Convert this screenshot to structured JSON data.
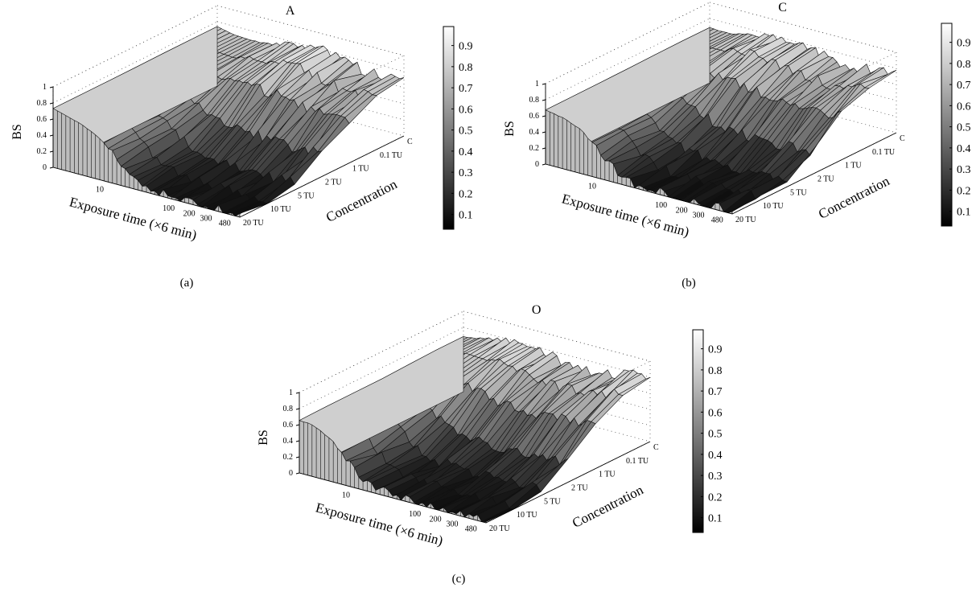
{
  "chart_data": [
    {
      "type": "surface",
      "panel_label": "(a)",
      "title": "A",
      "xlabel": "Exposure time (×6 min)",
      "ylabel": "Concentration",
      "zlabel": "BS",
      "x_ticks": [
        "10",
        "100",
        "200",
        "300",
        "480"
      ],
      "y_ticks": [
        "20 TU",
        "10 TU",
        "5 TU",
        "2 TU",
        "1 TU",
        "0.1 TU",
        "C"
      ],
      "z_ticks": [
        "0",
        "0.2",
        "0.4",
        "0.6",
        "0.8",
        "1"
      ],
      "zlim": [
        0,
        1
      ],
      "colorbar": {
        "ticks": [
          "0.1",
          "0.2",
          "0.3",
          "0.4",
          "0.5",
          "0.6",
          "0.7",
          "0.8",
          "0.9"
        ],
        "colormap": "gray"
      },
      "grid": "dotted"
    },
    {
      "type": "surface",
      "panel_label": "(b)",
      "title": "C",
      "xlabel": "Exposure time (×6 min)",
      "ylabel": "Concentration",
      "zlabel": "BS",
      "x_ticks": [
        "10",
        "100",
        "200",
        "300",
        "480"
      ],
      "y_ticks": [
        "20 TU",
        "10 TU",
        "5 TU",
        "2 TU",
        "1 TU",
        "0.1 TU",
        "C"
      ],
      "z_ticks": [
        "0",
        "0.2",
        "0.4",
        "0.6",
        "0.8",
        "1"
      ],
      "zlim": [
        0,
        1
      ],
      "colorbar": {
        "ticks": [
          "0.1",
          "0.2",
          "0.3",
          "0.4",
          "0.5",
          "0.6",
          "0.7",
          "0.8",
          "0.9"
        ],
        "colormap": "gray"
      },
      "grid": "dotted"
    },
    {
      "type": "surface",
      "panel_label": "(c)",
      "title": "O",
      "xlabel": "Exposure time (×6 min)",
      "ylabel": "Concentration",
      "zlabel": "BS",
      "x_ticks": [
        "10",
        "100",
        "200",
        "300",
        "480"
      ],
      "y_ticks": [
        "20 TU",
        "10 TU",
        "5 TU",
        "2 TU",
        "1 TU",
        "0.1 TU",
        "C"
      ],
      "z_ticks": [
        "0",
        "0.2",
        "0.4",
        "0.6",
        "0.8",
        "1"
      ],
      "zlim": [
        0,
        1
      ],
      "colorbar": {
        "ticks": [
          "0.1",
          "0.2",
          "0.3",
          "0.4",
          "0.5",
          "0.6",
          "0.7",
          "0.8",
          "0.9"
        ],
        "colormap": "gray"
      },
      "grid": "dotted"
    }
  ]
}
